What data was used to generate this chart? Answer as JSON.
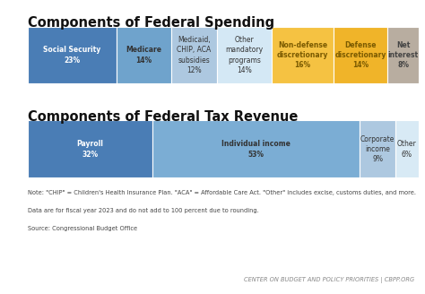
{
  "title1": "Components of Federal Spending",
  "title2": "Components of Federal Tax Revenue",
  "spending_segments": [
    {
      "label": "Social Security\n23%",
      "value": 23,
      "color": "#4a7db5",
      "text_color": "#ffffff",
      "bold": true
    },
    {
      "label": "Medicare\n14%",
      "value": 14,
      "color": "#6fa3cc",
      "text_color": "#333333",
      "bold": true
    },
    {
      "label": "Medicaid,\nCHIP, ACA\nsubsidies\n12%",
      "value": 12,
      "color": "#adc8e0",
      "text_color": "#333333",
      "bold": false
    },
    {
      "label": "Other\nmandatory\nprograms\n14%",
      "value": 14,
      "color": "#d4e8f5",
      "text_color": "#333333",
      "bold": false
    },
    {
      "label": "Non-defense\ndiscretionary\n16%",
      "value": 16,
      "color": "#f5c242",
      "text_color": "#7a5a00",
      "bold": true
    },
    {
      "label": "Defense\ndiscretionary\n14%",
      "value": 14,
      "color": "#f0b429",
      "text_color": "#7a5a00",
      "bold": true
    },
    {
      "label": "Net\ninterest\n8%",
      "value": 8,
      "color": "#b8ada0",
      "text_color": "#444444",
      "bold": true
    }
  ],
  "revenue_segments": [
    {
      "label": "Payroll\n32%",
      "value": 32,
      "color": "#4a7db5",
      "text_color": "#ffffff",
      "bold": true
    },
    {
      "label": "Individual income\n53%",
      "value": 53,
      "color": "#7badd4",
      "text_color": "#333333",
      "bold": true
    },
    {
      "label": "Corporate\nincome\n9%",
      "value": 9,
      "color": "#adc8e0",
      "text_color": "#333333",
      "bold": false
    },
    {
      "label": "Other\n6%",
      "value": 6,
      "color": "#d8eaf5",
      "text_color": "#333333",
      "bold": false
    }
  ],
  "note_line1": "Note: \"CHIP\" = Children's Health Insurance Plan. \"ACA\" = Affordable Care Act. \"Other\" includes excise, customs duties, and more.",
  "note_line2": "Data are for fiscal year 2023 and do not add to 100 percent due to rounding.",
  "note_line3": "Source: Congressional Budget Office",
  "footer": "CENTER ON BUDGET AND POLICY PRIORITIES | CBPP.ORG",
  "bg_color": "#ffffff",
  "title_fontsize": 10.5,
  "bar_label_fontsize": 5.5,
  "note_fontsize": 4.8,
  "footer_fontsize": 4.8,
  "accent_color": "#555555"
}
